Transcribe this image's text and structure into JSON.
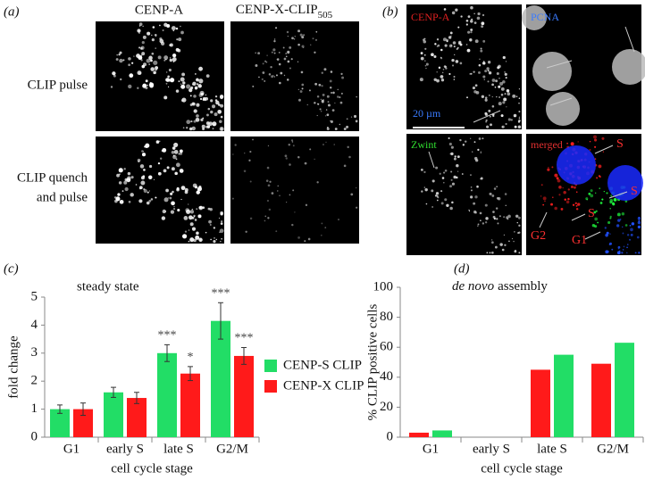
{
  "panel_a": {
    "label": "(a)",
    "col1": "CENP-A",
    "col2": "CENP-X-CLIP",
    "col2_sub": "505",
    "row1": "CLIP pulse",
    "row2_line1": "CLIP quench",
    "row2_line2": "and pulse"
  },
  "panel_b": {
    "label": "(b)",
    "tl": "CENP-A",
    "tr": "PCNA",
    "scale": "20 µm",
    "bl": "Zwint",
    "br": "merged",
    "s1": "S",
    "s2": "S",
    "s3": "S",
    "g2": "G2",
    "g1": "G1"
  },
  "chart_data": [
    {
      "type": "bar",
      "panel_label": "(c)",
      "title": "steady state",
      "x_label": "cell cycle stage",
      "y_label": "fold change",
      "categories": [
        "G1",
        "early S",
        "late S",
        "G2/M"
      ],
      "ylim": [
        0,
        5
      ],
      "yticks": [
        0,
        1,
        2,
        3,
        4,
        5
      ],
      "legend": "right",
      "series": [
        {
          "name": "CENP-S CLIP",
          "color": "#22dd66",
          "values": [
            1.0,
            1.6,
            3.0,
            4.15
          ],
          "errors": [
            0.15,
            0.18,
            0.3,
            0.65
          ],
          "significance": [
            null,
            null,
            "***",
            "***"
          ]
        },
        {
          "name": "CENP-X CLIP",
          "color": "#ff1a1a",
          "values": [
            1.0,
            1.4,
            2.27,
            2.9
          ],
          "errors": [
            0.22,
            0.2,
            0.25,
            0.3
          ],
          "significance": [
            null,
            null,
            "*",
            "***"
          ]
        }
      ]
    },
    {
      "type": "bar",
      "panel_label": "(d)",
      "title_emphasis": "de novo",
      "title": "assembly",
      "x_label": "cell cycle stage",
      "y_label": "% CLIP positive cells",
      "categories": [
        "G1",
        "early S",
        "late S",
        "G2/M"
      ],
      "ylim": [
        0,
        100
      ],
      "yticks": [
        0,
        20,
        40,
        60,
        80,
        100
      ],
      "series": [
        {
          "color": "#ff1a1a",
          "values": [
            3,
            0,
            45,
            49
          ]
        },
        {
          "color": "#22dd66",
          "values": [
            4.5,
            0,
            55,
            63
          ]
        }
      ]
    }
  ]
}
